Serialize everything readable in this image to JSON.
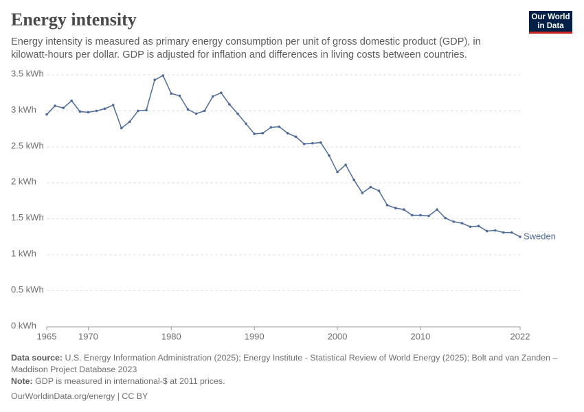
{
  "chart_data": {
    "type": "line",
    "title": "Energy intensity",
    "subtitle": "Energy intensity is measured as primary energy consumption per unit of gross domestic product (GDP), in kilowatt-hours per dollar. GDP is adjusted for inflation and differences in living costs between countries.",
    "logo": [
      "Our World",
      "in Data"
    ],
    "x": [
      1965,
      1966,
      1967,
      1968,
      1969,
      1970,
      1971,
      1972,
      1973,
      1974,
      1975,
      1976,
      1977,
      1978,
      1979,
      1980,
      1981,
      1982,
      1983,
      1984,
      1985,
      1986,
      1987,
      1988,
      1989,
      1990,
      1991,
      1992,
      1993,
      1994,
      1995,
      1996,
      1997,
      1998,
      1999,
      2000,
      2001,
      2002,
      2003,
      2004,
      2005,
      2006,
      2007,
      2008,
      2009,
      2010,
      2011,
      2012,
      2013,
      2014,
      2015,
      2016,
      2017,
      2018,
      2019,
      2020,
      2021,
      2022
    ],
    "series": [
      {
        "name": "Sweden",
        "color": "#4c6a9c",
        "values": [
          2.95,
          3.07,
          3.04,
          3.14,
          2.99,
          2.98,
          3.0,
          3.03,
          3.08,
          2.76,
          2.85,
          3.0,
          3.01,
          3.43,
          3.49,
          3.24,
          3.21,
          3.02,
          2.96,
          3.0,
          3.2,
          3.25,
          3.09,
          2.96,
          2.82,
          2.68,
          2.69,
          2.77,
          2.78,
          2.69,
          2.64,
          2.54,
          2.55,
          2.56,
          2.38,
          2.15,
          2.25,
          2.04,
          1.86,
          1.94,
          1.89,
          1.69,
          1.65,
          1.63,
          1.55,
          1.55,
          1.54,
          1.63,
          1.51,
          1.46,
          1.44,
          1.39,
          1.4,
          1.33,
          1.34,
          1.31,
          1.31,
          1.25
        ]
      }
    ],
    "xlim": [
      1965,
      2022
    ],
    "xticks": [
      1965,
      1970,
      1980,
      1990,
      2000,
      2010,
      2022
    ],
    "ylim": [
      0,
      3.5
    ],
    "yticks": [
      {
        "value": 0,
        "label": "0 kWh"
      },
      {
        "value": 0.5,
        "label": "0.5 kWh"
      },
      {
        "value": 1,
        "label": "1 kWh"
      },
      {
        "value": 1.5,
        "label": "1.5 kWh"
      },
      {
        "value": 2,
        "label": "2 kWh"
      },
      {
        "value": 2.5,
        "label": "2.5 kWh"
      },
      {
        "value": 3,
        "label": "3 kWh"
      },
      {
        "value": 3.5,
        "label": "3.5 kWh"
      }
    ],
    "grid": true,
    "source_label": "Data source:",
    "source": "U.S. Energy Information Administration (2025); Energy Institute - Statistical Review of World Energy (2025); Bolt and van Zanden – Maddison Project Database 2023",
    "note_label": "Note:",
    "note": "GDP is measured in international-$ at 2011 prices.",
    "url": "OurWorldinData.org/energy | CC BY"
  }
}
